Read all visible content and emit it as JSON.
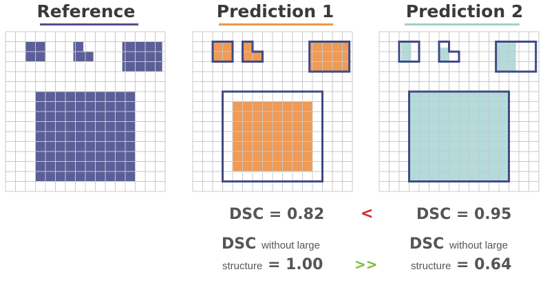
{
  "panels": [
    {
      "title": "Reference",
      "underline_color": "#4f4f8b"
    },
    {
      "title": "Prediction 1",
      "underline_color": "#f0963f"
    },
    {
      "title": "Prediction 2",
      "underline_color": "#9fd1c7"
    }
  ],
  "colors": {
    "reference_fill": "#5b5f97",
    "prediction1_fill": "#ef9a55",
    "prediction2_fill": "#b5dada",
    "outline": "#3f4a85",
    "grid": "#c8c8c8",
    "less_than": "#cc2222",
    "much_greater": "#77bb33"
  },
  "metrics": {
    "pred1_dsc": "DSC = 0.82",
    "pred2_dsc": "DSC = 0.95",
    "compare_dsc": "<",
    "dsc_word_1": "DSC",
    "without_large_1": "without large",
    "structure_1": "structure",
    "value_1": "= 1.00",
    "dsc_word_2": "DSC",
    "without_large_2": "without large",
    "structure_2": "structure",
    "value_2": "= 0.64",
    "compare_without": ">>"
  }
}
